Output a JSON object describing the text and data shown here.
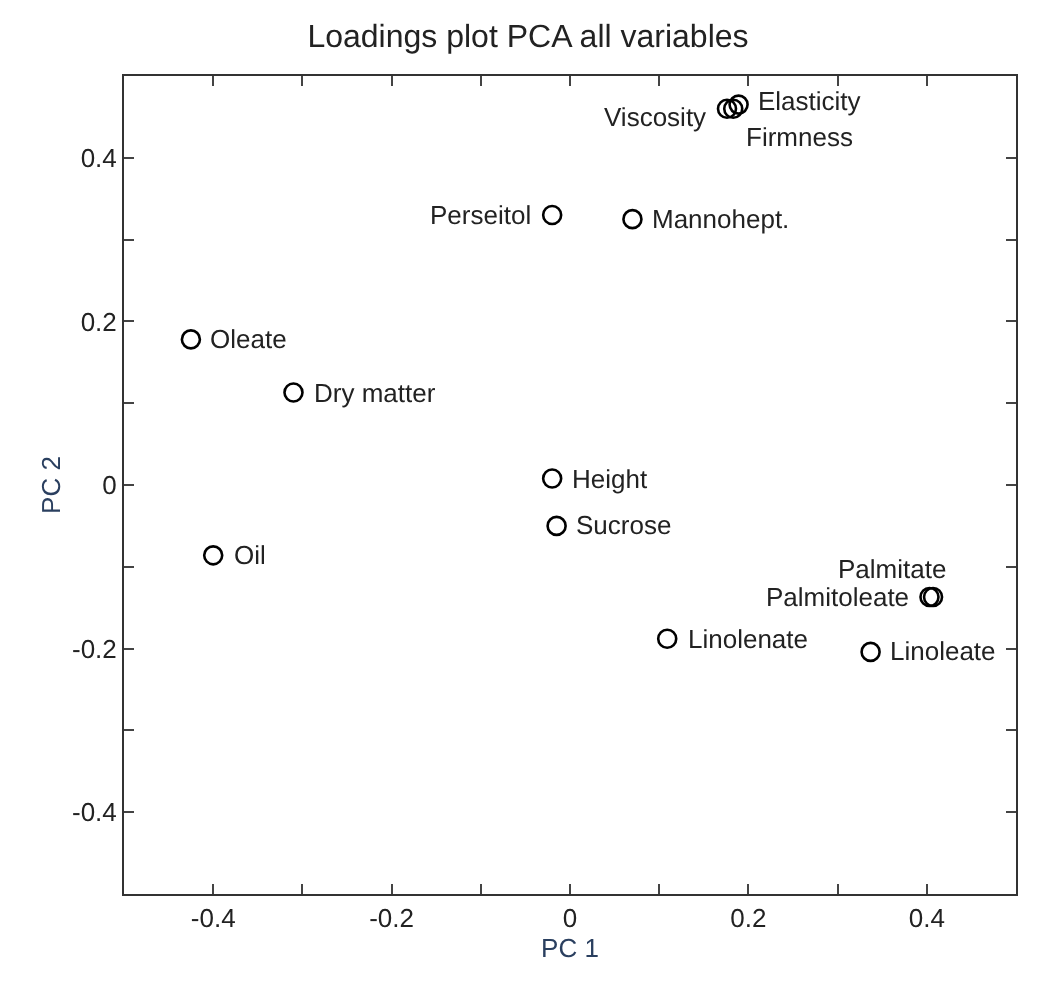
{
  "chart_data": {
    "type": "scatter",
    "title": "Loadings plot PCA all variables",
    "xlabel": "PC 1",
    "ylabel": "PC 2",
    "series": [
      {
        "color": "#000000",
        "x": [
          0.176,
          0.189,
          0.183,
          -0.02,
          0.07,
          -0.425,
          -0.31,
          -0.02,
          -0.015,
          -0.4,
          0.407,
          0.403,
          0.109,
          0.337
        ],
        "values": [
          0.46,
          0.465,
          0.46,
          0.33,
          0.325,
          0.178,
          0.113,
          0.008,
          -0.05,
          -0.086,
          -0.137,
          -0.137,
          -0.188,
          -0.204
        ]
      }
    ],
    "annotations": [
      {
        "text": "Viscosity",
        "x": 0.176,
        "y": 0.46
      },
      {
        "text": "Elasticity",
        "x": 0.189,
        "y": 0.465
      },
      {
        "text": "Firmness",
        "x": 0.183,
        "y": 0.46
      },
      {
        "text": "Perseitol",
        "x": -0.02,
        "y": 0.33
      },
      {
        "text": "Mannohept.",
        "x": 0.07,
        "y": 0.325
      },
      {
        "text": "Oleate",
        "x": -0.425,
        "y": 0.178
      },
      {
        "text": "Dry matter",
        "x": -0.31,
        "y": 0.113
      },
      {
        "text": "Height",
        "x": -0.02,
        "y": 0.008
      },
      {
        "text": "Sucrose",
        "x": -0.015,
        "y": -0.05
      },
      {
        "text": "Oil",
        "x": -0.4,
        "y": -0.086
      },
      {
        "text": "Palmitate",
        "x": 0.407,
        "y": -0.137
      },
      {
        "text": "Palmitoleate",
        "x": 0.403,
        "y": -0.137
      },
      {
        "text": "Linolenate",
        "x": 0.109,
        "y": -0.188
      },
      {
        "text": "Linoleate",
        "x": 0.337,
        "y": -0.204
      }
    ],
    "xlim": [
      -0.5,
      0.5
    ],
    "xticks": [
      -0.4,
      {
        "value": -0.3,
        "label": null
      },
      -0.2,
      {
        "value": -0.1,
        "label": null
      },
      0,
      {
        "value": 0.1,
        "label": null
      },
      0.2,
      {
        "value": 0.3,
        "label": null
      },
      0.4
    ],
    "ylim": [
      -0.5,
      0.5
    ],
    "yticks": [
      -0.4,
      {
        "value": -0.3,
        "label": null
      },
      -0.2,
      {
        "value": -0.1,
        "label": null
      },
      0,
      {
        "value": 0.1,
        "label": null
      },
      0.2,
      {
        "value": 0.3,
        "label": null
      },
      0.4
    ],
    "marker": "circle"
  }
}
